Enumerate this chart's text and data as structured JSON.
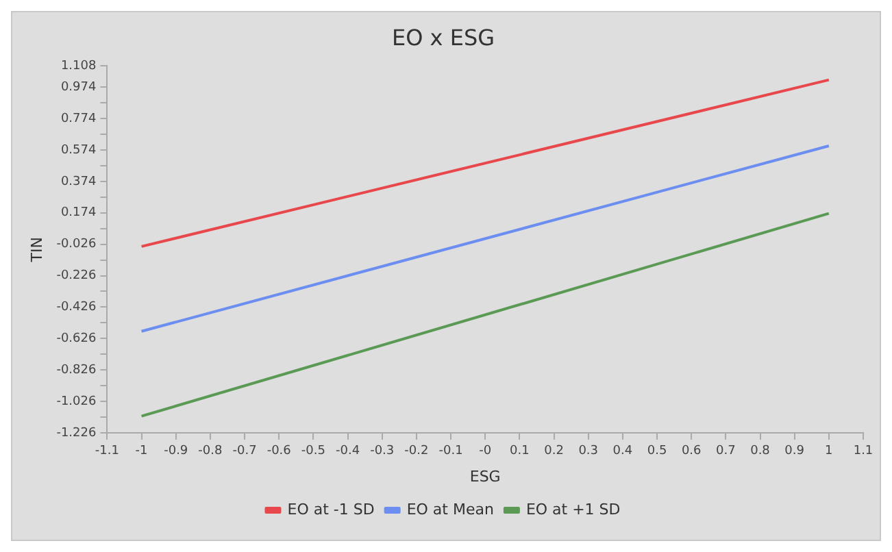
{
  "chart_data": {
    "type": "line",
    "title": "EO x ESG",
    "xlabel": "ESG",
    "ylabel": "TIN",
    "x": [
      -1,
      1
    ],
    "series": [
      {
        "name": "EO at -1 SD",
        "color": "#e8474c",
        "values": [
          -0.04,
          1.02
        ]
      },
      {
        "name": "EO at Mean",
        "color": "#6b8ef0",
        "values": [
          -0.58,
          0.6
        ]
      },
      {
        "name": "EO at +1 SD",
        "color": "#5b9a55",
        "values": [
          -1.12,
          0.17
        ]
      }
    ],
    "xlim": [
      -1.1,
      1.1
    ],
    "xticks": [
      -1.1,
      -1,
      -0.9,
      -0.8,
      -0.7,
      -0.6,
      -0.5,
      -0.4,
      -0.3,
      -0.2,
      -0.1,
      {
        "value": 0,
        "label": "-0"
      },
      0.1,
      0.2,
      0.3,
      0.4,
      0.5,
      0.6,
      0.7,
      0.8,
      0.9,
      1,
      1.1
    ],
    "ylim": [
      -1.226,
      1.108
    ],
    "yticks": [
      -1.226,
      {
        "value": -1.126,
        "label": null
      },
      -1.026,
      {
        "value": -0.926,
        "label": null
      },
      -0.826,
      {
        "value": -0.726,
        "label": null
      },
      -0.626,
      {
        "value": -0.526,
        "label": null
      },
      -0.426,
      {
        "value": -0.326,
        "label": null
      },
      -0.226,
      {
        "value": -0.126,
        "label": null
      },
      -0.026,
      {
        "value": 0.074,
        "label": null
      },
      0.174,
      {
        "value": 0.274,
        "label": null
      },
      0.374,
      {
        "value": 0.474,
        "label": null
      },
      0.574,
      {
        "value": 0.674,
        "label": null
      },
      0.774,
      {
        "value": 0.874,
        "label": null
      },
      0.974,
      1.108
    ],
    "grid": false,
    "legend": "bottom",
    "marker": "none",
    "line_style": "solid"
  }
}
